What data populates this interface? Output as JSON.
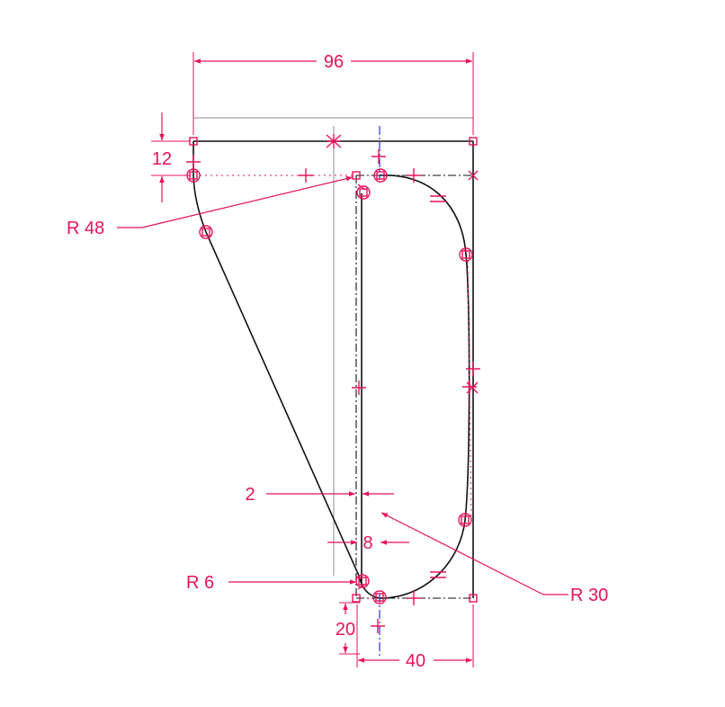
{
  "drawing": {
    "dimensions": {
      "overall_width": "96",
      "top_offset": "12",
      "slot_gap": "2",
      "slot_inset": "8",
      "bottom_offset": "20",
      "slot_width": "40"
    },
    "radii": {
      "left_arc": "R 48",
      "small_fillet": "R 6",
      "large_fillet": "R 30"
    },
    "colors": {
      "geometry": "#111111",
      "dimension": "#e8125c",
      "construction": "#8c8c8c",
      "centerline": "#2233dd"
    }
  }
}
